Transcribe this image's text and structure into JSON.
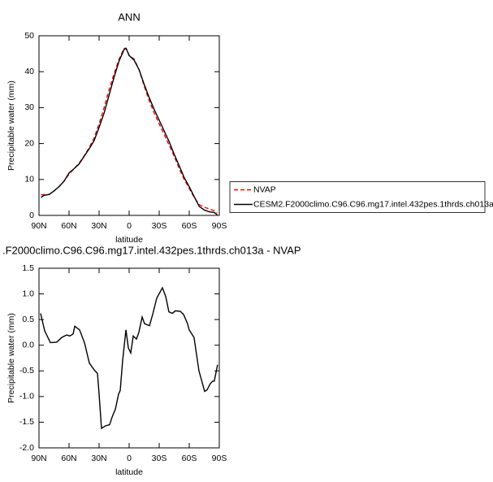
{
  "chart_data": [
    {
      "type": "line",
      "title": "ANN",
      "xlabel": "latitude",
      "ylabel": "Precipitable water (mm)",
      "x": [
        88,
        85,
        80,
        75,
        70,
        65,
        60,
        55,
        50,
        45,
        40,
        35,
        30,
        25,
        20,
        15,
        10,
        5,
        3,
        0,
        -5,
        -10,
        -15,
        -20,
        -25,
        -30,
        -35,
        -40,
        -45,
        -50,
        -55,
        -60,
        -65,
        -70,
        -75,
        -80,
        -85,
        -88
      ],
      "series": [
        {
          "name": "NVAP",
          "color": "#ff0000",
          "style": "dashed",
          "values": [
            5.7,
            5.8,
            5.8,
            6.8,
            8.0,
            9.5,
            11.5,
            13.0,
            14.5,
            16.5,
            18.8,
            21.5,
            25.5,
            30.0,
            35.0,
            39.5,
            43.5,
            46.5,
            46.5,
            44.5,
            43.5,
            40.5,
            36.0,
            32.0,
            28.5,
            25.5,
            22.5,
            19.5,
            16.5,
            13.0,
            10.0,
            7.5,
            5.0,
            3.0,
            2.3,
            1.8,
            1.3,
            0.8
          ]
        },
        {
          "name": "CESM2.F2000climo.C96.C96.mg17.intel.432pes.1thrds.ch013a",
          "color": "#000000",
          "style": "solid",
          "values": [
            5.0,
            5.6,
            5.8,
            6.8,
            8.0,
            9.5,
            11.8,
            13.0,
            14.3,
            16.4,
            18.5,
            20.8,
            24.5,
            28.5,
            33.5,
            38.5,
            43.0,
            46.2,
            46.5,
            44.5,
            43.2,
            40.5,
            36.5,
            32.8,
            29.5,
            26.5,
            23.5,
            20.5,
            17.0,
            13.8,
            10.5,
            8.0,
            5.2,
            2.5,
            1.5,
            1.0,
            0.8,
            0.2
          ]
        }
      ],
      "xlim": [
        90,
        -90
      ],
      "xticks": [
        {
          "value": 90,
          "label": "90N"
        },
        {
          "value": 60,
          "label": "60N"
        },
        {
          "value": 30,
          "label": "30N"
        },
        0,
        {
          "value": -30,
          "label": "30S"
        },
        {
          "value": -60,
          "label": "60S"
        },
        {
          "value": -90,
          "label": "90S"
        }
      ],
      "ylim": [
        0,
        50
      ],
      "yticks": [
        0,
        10,
        20,
        30,
        40,
        50
      ],
      "legend": "right"
    },
    {
      "type": "line",
      "title": ".F2000climo.C96.C96.mg17.intel.432pes.1thrds.ch013a - NVAP",
      "xlabel": "latitude",
      "ylabel": "Precipitable water (mm)",
      "x": [
        88.4,
        84.3,
        78.6,
        72.2,
        67.3,
        62.4,
        59.2,
        55.9,
        54.3,
        49.5,
        44.6,
        39.7,
        34.9,
        31.6,
        30.0,
        27.6,
        23.5,
        19.5,
        17.0,
        13.8,
        10.5,
        8.9,
        6.5,
        3.2,
        0.8,
        -1.6,
        -4.1,
        -7.3,
        -9.7,
        -13.0,
        -15.4,
        -20.3,
        -23.5,
        -27.6,
        -33.2,
        -36.5,
        -39.7,
        -43.0,
        -46.2,
        -51.1,
        -54.3,
        -58.3,
        -59.9,
        -64.8,
        -69.7,
        -75.4,
        -77.8,
        -81.0,
        -83.4,
        -85.0,
        -88.3
      ],
      "series": [
        {
          "name": null,
          "color": "#000000",
          "style": "solid",
          "values": [
            0.62,
            0.28,
            0.05,
            0.06,
            0.15,
            0.2,
            0.18,
            0.22,
            0.37,
            0.3,
            0.05,
            -0.35,
            -0.48,
            -0.55,
            -0.95,
            -1.62,
            -1.57,
            -1.55,
            -1.4,
            -1.25,
            -0.95,
            -0.88,
            -0.3,
            0.3,
            -0.05,
            -0.15,
            0.18,
            0.12,
            0.25,
            0.55,
            0.42,
            0.38,
            0.6,
            0.92,
            1.12,
            0.95,
            0.65,
            0.62,
            0.67,
            0.66,
            0.6,
            0.42,
            0.3,
            0.15,
            -0.5,
            -0.9,
            -0.87,
            -0.75,
            -0.7,
            -0.7,
            -0.38
          ]
        }
      ],
      "xlim": [
        90,
        -90
      ],
      "xticks": [
        {
          "value": 90,
          "label": "90N"
        },
        {
          "value": 60,
          "label": "60N"
        },
        {
          "value": 30,
          "label": "30N"
        },
        0,
        {
          "value": -30,
          "label": "30S"
        },
        {
          "value": -60,
          "label": "60S"
        },
        {
          "value": -90,
          "label": "90S"
        }
      ],
      "ylim": [
        -2,
        1.5
      ],
      "yticks": [
        {
          "value": -2,
          "label": "-2.0"
        },
        -1.5,
        {
          "value": -1,
          "label": "-1.0"
        },
        -0.5,
        {
          "value": 0,
          "label": "0.0"
        },
        0.5,
        {
          "value": 1,
          "label": "1.0"
        },
        1.5
      ]
    }
  ]
}
